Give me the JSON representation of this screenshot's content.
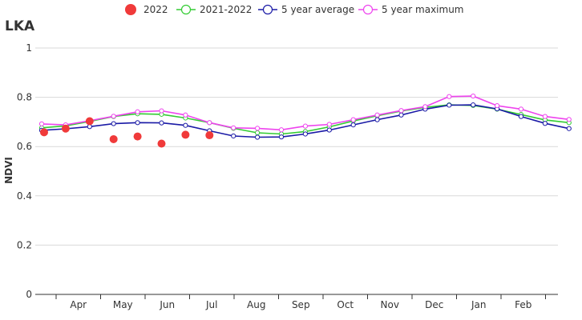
{
  "chart_data": {
    "type": "line",
    "title": "LKA",
    "ylabel": "NDVI",
    "xlabel": "",
    "ylim": [
      0,
      1
    ],
    "yticks": [
      "0",
      "0.2",
      "0.4",
      "0.6",
      "0.8",
      "1"
    ],
    "grid": true,
    "legend_position": "top",
    "month_labels": [
      "Apr",
      "May",
      "Jun",
      "Jul",
      "Aug",
      "Sep",
      "Oct",
      "Nov",
      "Dec",
      "Jan",
      "Feb"
    ],
    "series": [
      {
        "name": "2022",
        "style": "dots",
        "color": "#f03a3a",
        "x": [
          0.1,
          1.0,
          2.0,
          3.0,
          4.0,
          5.0,
          6.0,
          7.0
        ],
        "values": [
          0.658,
          0.673,
          0.703,
          0.63,
          0.641,
          0.612,
          0.648,
          0.646
        ]
      },
      {
        "name": "2021-2022",
        "style": "line",
        "color": "#33cc33",
        "x": [
          0,
          1,
          2,
          3,
          4,
          5,
          6,
          7,
          8,
          9,
          10,
          11,
          12,
          13,
          14,
          15,
          16,
          17,
          18,
          19,
          20,
          21,
          22
        ],
        "values": [
          0.676,
          0.684,
          0.702,
          0.722,
          0.733,
          0.731,
          0.716,
          0.697,
          0.674,
          0.656,
          0.651,
          0.661,
          0.68,
          0.704,
          0.725,
          0.744,
          0.759,
          0.769,
          0.767,
          0.752,
          0.73,
          0.708,
          0.697
        ]
      },
      {
        "name": "5 year average",
        "style": "line",
        "color": "#1a1aa6",
        "x": [
          0,
          1,
          2,
          3,
          4,
          5,
          6,
          7,
          8,
          9,
          10,
          11,
          12,
          13,
          14,
          15,
          16,
          17,
          18,
          19,
          20,
          21,
          22
        ],
        "values": [
          0.666,
          0.672,
          0.681,
          0.693,
          0.697,
          0.696,
          0.686,
          0.664,
          0.643,
          0.638,
          0.639,
          0.651,
          0.667,
          0.688,
          0.709,
          0.728,
          0.752,
          0.768,
          0.769,
          0.753,
          0.722,
          0.694,
          0.673
        ]
      },
      {
        "name": "5 year maximum",
        "style": "line",
        "color": "#ee44ee",
        "x": [
          0,
          1,
          2,
          3,
          4,
          5,
          6,
          7,
          8,
          9,
          10,
          11,
          12,
          13,
          14,
          15,
          16,
          17,
          18,
          19,
          20,
          21,
          22
        ],
        "values": [
          0.692,
          0.688,
          0.705,
          0.723,
          0.741,
          0.745,
          0.728,
          0.697,
          0.676,
          0.674,
          0.668,
          0.683,
          0.69,
          0.709,
          0.728,
          0.746,
          0.762,
          0.803,
          0.805,
          0.766,
          0.752,
          0.722,
          0.71
        ]
      }
    ]
  }
}
